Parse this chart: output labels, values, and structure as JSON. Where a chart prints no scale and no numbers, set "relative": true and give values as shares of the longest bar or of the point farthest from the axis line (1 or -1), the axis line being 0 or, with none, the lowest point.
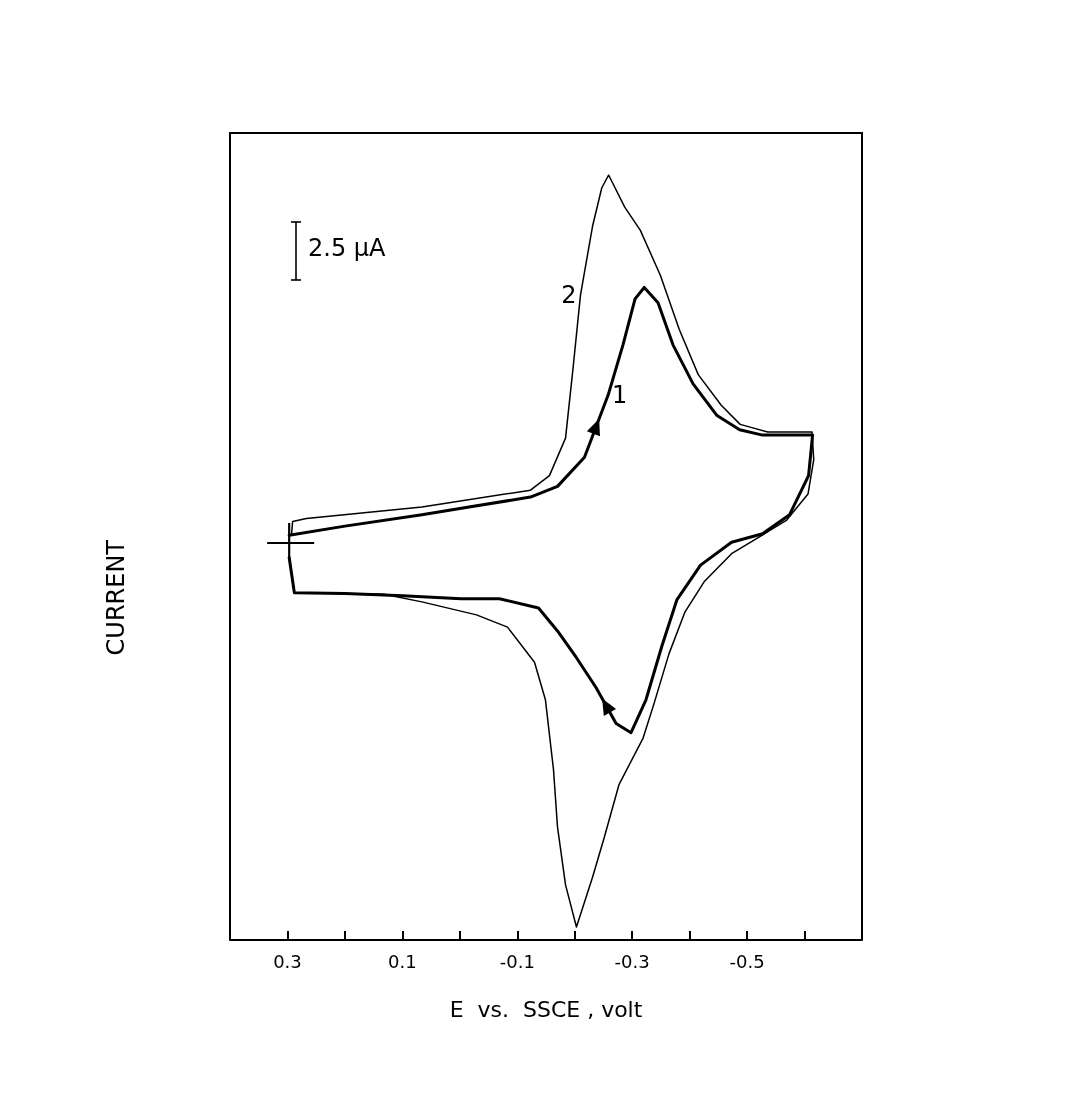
{
  "chart_data": {
    "type": "line",
    "relative": true,
    "xlabel": "E  vs.  SSCE , volt",
    "ylabel": "CURRENT",
    "annotations": [
      "2.5 μA"
    ],
    "xlim": [
      0.4,
      -0.7
    ],
    "xticks": [
      0.3,
      {
        "value": 0.2,
        "label": null
      },
      0.1,
      {
        "value": 0,
        "label": null
      },
      -0.1,
      {
        "value": -0.2,
        "label": null
      },
      -0.3,
      {
        "value": -0.4,
        "label": null
      },
      -0.5,
      {
        "value": -0.6,
        "label": null
      }
    ],
    "grid": false,
    "legend": false,
    "marker": "none",
    "line_style": "solid",
    "series": [
      {
        "name": "1",
        "color": "#000000",
        "x": [
          0.297,
          0.2,
          0.066,
          -0.123,
          -0.17,
          -0.217,
          -0.258,
          -0.284,
          -0.305,
          -0.321,
          -0.345,
          -0.371,
          -0.406,
          -0.447,
          -0.487,
          -0.527,
          -0.614,
          null,
          -0.614,
          -0.607,
          -0.574,
          -0.527,
          -0.473,
          -0.419,
          -0.378,
          -0.352,
          -0.324,
          -0.298,
          -0.272,
          -0.237,
          -0.203,
          -0.17,
          -0.137,
          -0.069,
          -0.002,
          0.099,
          0.2,
          0.288,
          0.297
        ],
        "values": [
          0.529,
          0.541,
          0.556,
          0.579,
          0.593,
          0.631,
          0.712,
          0.778,
          0.838,
          0.853,
          0.833,
          0.778,
          0.727,
          0.686,
          0.667,
          0.66,
          0.66,
          null,
          0.66,
          0.607,
          0.556,
          0.531,
          0.52,
          0.49,
          0.445,
          0.385,
          0.314,
          0.271,
          0.283,
          0.33,
          0.369,
          0.404,
          0.434,
          0.446,
          0.446,
          0.45,
          0.453,
          0.454,
          0.5
        ]
      },
      {
        "name": "2",
        "color": "#000000",
        "x": [
          0.293,
          0.291,
          0.267,
          0.066,
          -0.123,
          -0.156,
          -0.184,
          -0.197,
          -0.21,
          -0.231,
          -0.247,
          -0.259,
          -0.287,
          -0.314,
          -0.349,
          -0.382,
          -0.415,
          -0.455,
          -0.488,
          -0.536,
          -0.613,
          -0.616,
          null,
          -0.616,
          -0.606,
          -0.569,
          -0.539,
          -0.473,
          -0.426,
          -0.392,
          -0.364,
          -0.338,
          -0.319,
          -0.277,
          -0.251,
          -0.231,
          -0.203,
          -0.184,
          -0.17,
          -0.163,
          -0.149,
          -0.13,
          -0.083,
          -0.029,
          0.066,
          0.132,
          0.288,
          0.297
        ],
        "values": [
          0.529,
          0.547,
          0.551,
          0.566,
          0.588,
          0.607,
          0.656,
          0.747,
          0.843,
          0.933,
          0.983,
          1,
          0.958,
          0.928,
          0.869,
          0.798,
          0.739,
          0.699,
          0.674,
          0.664,
          0.664,
          0.628,
          null,
          0.628,
          0.583,
          0.549,
          0.535,
          0.505,
          0.469,
          0.429,
          0.374,
          0.309,
          0.264,
          0.203,
          0.133,
          0.082,
          0.017,
          0.072,
          0.148,
          0.223,
          0.314,
          0.363,
          0.409,
          0.425,
          0.442,
          0.452,
          0.454,
          0.5
        ]
      }
    ]
  }
}
